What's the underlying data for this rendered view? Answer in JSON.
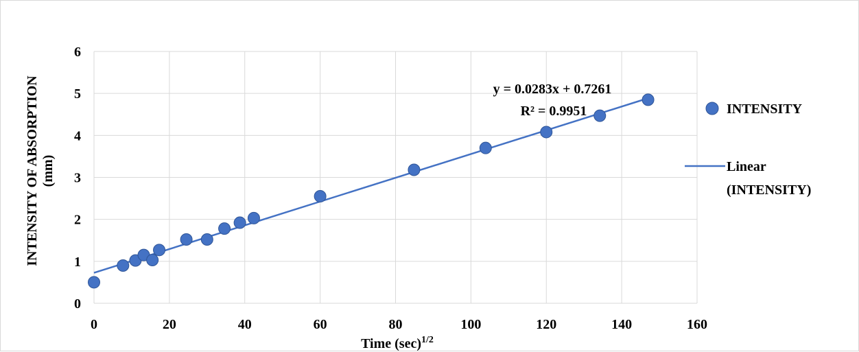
{
  "chart_data": {
    "type": "scatter",
    "xlabel": "Time (sec)",
    "xlabel_superscript": "1/2",
    "ylabel_line1": "INTENSITY OF ABSORPTION",
    "ylabel_line2": "(mm)",
    "xlim": [
      0,
      160
    ],
    "ylim": [
      0,
      6
    ],
    "xticks": [
      0,
      20,
      40,
      60,
      80,
      100,
      120,
      140,
      160
    ],
    "yticks": [
      0,
      1,
      2,
      3,
      4,
      5,
      6
    ],
    "grid": true,
    "legend_position": "right",
    "series": [
      {
        "name": "INTENSITY",
        "color": "#4472c4",
        "points": [
          [
            0,
            0.5
          ],
          [
            7.7,
            0.9
          ],
          [
            11,
            1.02
          ],
          [
            13.2,
            1.15
          ],
          [
            15.5,
            1.03
          ],
          [
            17.3,
            1.27
          ],
          [
            24.5,
            1.52
          ],
          [
            30,
            1.52
          ],
          [
            34.6,
            1.78
          ],
          [
            38.7,
            1.92
          ],
          [
            42.4,
            2.03
          ],
          [
            60,
            2.55
          ],
          [
            84.9,
            3.18
          ],
          [
            103.9,
            3.7
          ],
          [
            120,
            4.08
          ],
          [
            134.2,
            4.47
          ],
          [
            147,
            4.85
          ]
        ]
      }
    ],
    "trendline": {
      "name": "Linear (INTENSITY)",
      "name_line1": "Linear",
      "name_line2": "(INTENSITY)",
      "slope": 0.0283,
      "intercept": 0.7261,
      "x_range": [
        0,
        147
      ],
      "color": "#4472c4",
      "equation": "y = 0.0283x + 0.7261",
      "r_squared": "R² = 0.9951"
    }
  }
}
